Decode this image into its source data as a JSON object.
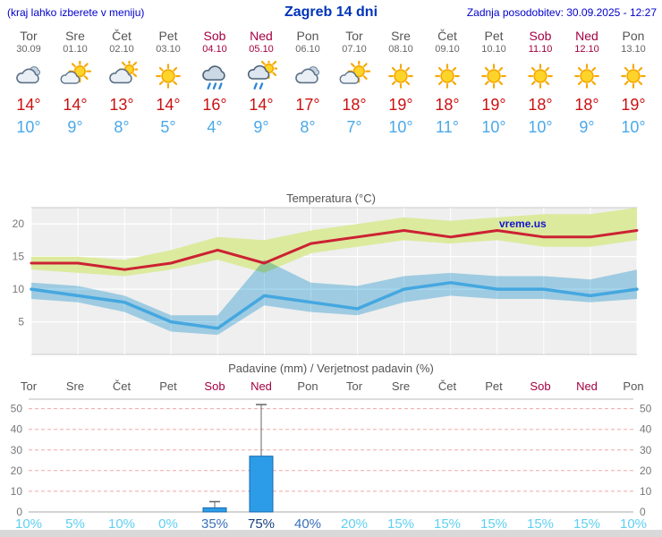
{
  "header": {
    "left_note": "(kraj lahko izberete v meniju)",
    "title": "Zagreb 14 dni",
    "updated": "Zadnja posodobitev: 30.09.2025 - 12:27"
  },
  "forecast": {
    "days": [
      {
        "name": "Tor",
        "date": "30.09",
        "weekend": false,
        "icon": "cloudy",
        "tmax": "14°",
        "tmin": "10°",
        "prob": "10%",
        "prob_tier": "low"
      },
      {
        "name": "Sre",
        "date": "01.10",
        "weekend": false,
        "icon": "partly-sunny",
        "tmax": "14°",
        "tmin": "9°",
        "prob": "5%",
        "prob_tier": "low"
      },
      {
        "name": "Čet",
        "date": "02.10",
        "weekend": false,
        "icon": "mostly-cloudy",
        "tmax": "13°",
        "tmin": "8°",
        "prob": "10%",
        "prob_tier": "low"
      },
      {
        "name": "Pet",
        "date": "03.10",
        "weekend": false,
        "icon": "sunny",
        "tmax": "14°",
        "tmin": "5°",
        "prob": "0%",
        "prob_tier": "low"
      },
      {
        "name": "Sob",
        "date": "04.10",
        "weekend": true,
        "icon": "rain",
        "tmax": "16°",
        "tmin": "4°",
        "prob": "35%",
        "prob_tier": "mid"
      },
      {
        "name": "Ned",
        "date": "05.10",
        "weekend": true,
        "icon": "sun-shower",
        "tmax": "14°",
        "tmin": "9°",
        "prob": "75%",
        "prob_tier": "high"
      },
      {
        "name": "Pon",
        "date": "06.10",
        "weekend": false,
        "icon": "cloudy",
        "tmax": "17°",
        "tmin": "8°",
        "prob": "40%",
        "prob_tier": "mid"
      },
      {
        "name": "Tor",
        "date": "07.10",
        "weekend": false,
        "icon": "partly-sunny",
        "tmax": "18°",
        "tmin": "7°",
        "prob": "20%",
        "prob_tier": "low"
      },
      {
        "name": "Sre",
        "date": "08.10",
        "weekend": false,
        "icon": "sunny",
        "tmax": "19°",
        "tmin": "10°",
        "prob": "15%",
        "prob_tier": "low"
      },
      {
        "name": "Čet",
        "date": "09.10",
        "weekend": false,
        "icon": "sunny",
        "tmax": "18°",
        "tmin": "11°",
        "prob": "15%",
        "prob_tier": "low"
      },
      {
        "name": "Pet",
        "date": "10.10",
        "weekend": false,
        "icon": "sunny",
        "tmax": "19°",
        "tmin": "10°",
        "prob": "15%",
        "prob_tier": "low"
      },
      {
        "name": "Sob",
        "date": "11.10",
        "weekend": true,
        "icon": "sunny",
        "tmax": "18°",
        "tmin": "10°",
        "prob": "15%",
        "prob_tier": "low"
      },
      {
        "name": "Ned",
        "date": "12.10",
        "weekend": true,
        "icon": "sunny",
        "tmax": "18°",
        "tmin": "9°",
        "prob": "15%",
        "prob_tier": "low"
      },
      {
        "name": "Pon",
        "date": "13.10",
        "weekend": false,
        "icon": "sunny",
        "tmax": "19°",
        "tmin": "10°",
        "prob": "10%",
        "prob_tier": "low"
      }
    ]
  },
  "chart_data": [
    {
      "type": "line",
      "title": "Temperatura (°C)",
      "watermark": "vreme.us",
      "ylim": [
        0,
        22.5
      ],
      "yticks": [
        5,
        10,
        15,
        20
      ],
      "categories": [
        "30.09",
        "01.10",
        "02.10",
        "03.10",
        "04.10",
        "05.10",
        "06.10",
        "07.10",
        "08.10",
        "09.10",
        "10.10",
        "11.10",
        "12.10",
        "13.10"
      ],
      "series": [
        {
          "name": "max-temp",
          "color": "#cc2233",
          "width": 3,
          "values": [
            14,
            14,
            13,
            14,
            16,
            14,
            17,
            18,
            19,
            18,
            19,
            18,
            18,
            19
          ]
        },
        {
          "name": "min-temp",
          "color": "#45a7e0",
          "width": 3.5,
          "values": [
            10,
            9,
            8,
            5,
            4,
            9,
            8,
            7,
            10,
            11,
            10,
            10,
            9,
            10
          ]
        }
      ],
      "bands": [
        {
          "name": "max-range",
          "color": "#dcea9e",
          "blend": false,
          "upper": [
            15,
            15,
            14.5,
            16,
            18,
            17.5,
            19,
            20,
            21,
            20.5,
            21,
            21.5,
            21.5,
            22.5
          ],
          "lower": [
            13,
            12.5,
            12,
            13,
            14.5,
            12.5,
            15.5,
            16.5,
            17.5,
            17,
            17.5,
            16.5,
            16.5,
            17.5
          ]
        },
        {
          "name": "min-range",
          "color": "#a9d9f0",
          "blend": true,
          "upper": [
            11,
            10.5,
            9,
            6,
            6,
            14.5,
            11,
            10.5,
            12,
            12.5,
            12,
            12,
            11.5,
            13
          ],
          "lower": [
            8.5,
            8,
            6.5,
            3.5,
            3,
            7.5,
            6.5,
            6,
            8,
            9,
            8.5,
            8.5,
            8,
            8.5
          ]
        }
      ],
      "grid": true,
      "legend": "none"
    },
    {
      "type": "bar",
      "title": "Padavine (mm) / Verjetnost padavin (%)",
      "categories": [
        "Tor",
        "Sre",
        "Čet",
        "Pet",
        "Sob",
        "Ned",
        "Pon",
        "Tor",
        "Sre",
        "Čet",
        "Pet",
        "Sob",
        "Ned",
        "Pon"
      ],
      "values": [
        0,
        0,
        0,
        0,
        2,
        27,
        0,
        0,
        0,
        0,
        0,
        0,
        0,
        0
      ],
      "range_max": [
        0,
        0,
        0,
        0,
        5,
        52,
        0,
        0,
        0,
        0,
        0,
        0,
        0,
        0
      ],
      "probabilities": [
        "10%",
        "5%",
        "10%",
        "0%",
        "35%",
        "75%",
        "40%",
        "20%",
        "15%",
        "15%",
        "15%",
        "15%",
        "15%",
        "10%"
      ],
      "ylim": [
        0,
        52
      ],
      "yticks": [
        0,
        10,
        20,
        30,
        40,
        50
      ],
      "bar_color": "#2d9ce8",
      "bar_border": "#1668ab",
      "grid": true,
      "legend": "none"
    }
  ]
}
